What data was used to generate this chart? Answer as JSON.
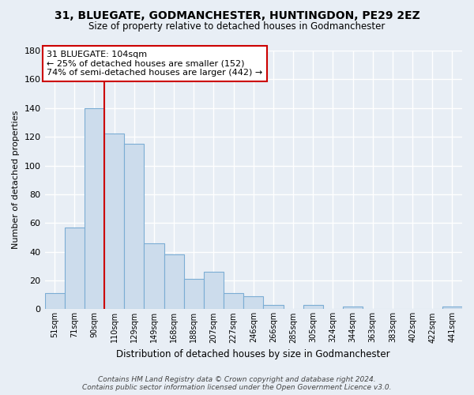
{
  "title": "31, BLUEGATE, GODMANCHESTER, HUNTINGDON, PE29 2EZ",
  "subtitle": "Size of property relative to detached houses in Godmanchester",
  "xlabel": "Distribution of detached houses by size in Godmanchester",
  "ylabel": "Number of detached properties",
  "bar_labels": [
    "51sqm",
    "71sqm",
    "90sqm",
    "110sqm",
    "129sqm",
    "149sqm",
    "168sqm",
    "188sqm",
    "207sqm",
    "227sqm",
    "246sqm",
    "266sqm",
    "285sqm",
    "305sqm",
    "324sqm",
    "344sqm",
    "363sqm",
    "383sqm",
    "402sqm",
    "422sqm",
    "441sqm"
  ],
  "bar_values": [
    11,
    57,
    140,
    122,
    115,
    46,
    38,
    21,
    26,
    11,
    9,
    3,
    0,
    3,
    0,
    2,
    0,
    0,
    0,
    0,
    2
  ],
  "bar_color": "#ccdcec",
  "bar_edgecolor": "#7badd4",
  "ylim": [
    0,
    180
  ],
  "yticks": [
    0,
    20,
    40,
    60,
    80,
    100,
    120,
    140,
    160,
    180
  ],
  "vline_color": "#cc0000",
  "annotation_title": "31 BLUEGATE: 104sqm",
  "annotation_line1": "← 25% of detached houses are smaller (152)",
  "annotation_line2": "74% of semi-detached houses are larger (442) →",
  "annotation_box_facecolor": "#ffffff",
  "annotation_box_edgecolor": "#cc0000",
  "footer1": "Contains HM Land Registry data © Crown copyright and database right 2024.",
  "footer2": "Contains public sector information licensed under the Open Government Licence v3.0.",
  "background_color": "#e8eef5"
}
